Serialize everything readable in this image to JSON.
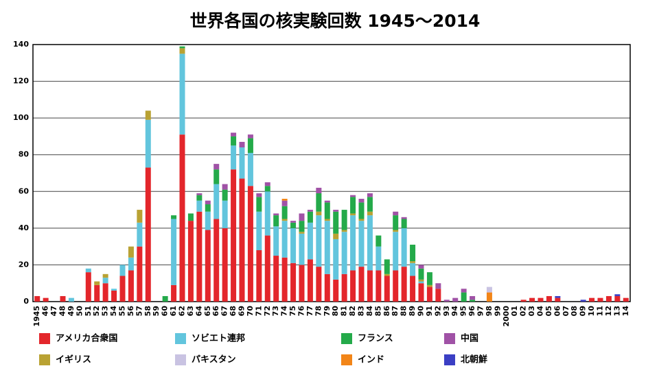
{
  "chart_data": {
    "type": "stacked_bar",
    "title": "世界各国の核実験回数 1945～2014",
    "categories": [
      "1945",
      "46",
      "47",
      "48",
      "49",
      "50",
      "51",
      "52",
      "53",
      "54",
      "55",
      "56",
      "57",
      "58",
      "59",
      "60",
      "61",
      "62",
      "63",
      "64",
      "65",
      "66",
      "67",
      "68",
      "69",
      "70",
      "71",
      "72",
      "73",
      "74",
      "75",
      "76",
      "77",
      "78",
      "79",
      "80",
      "81",
      "82",
      "83",
      "84",
      "85",
      "86",
      "87",
      "88",
      "89",
      "90",
      "91",
      "92",
      "93",
      "94",
      "95",
      "96",
      "97",
      "98",
      "99",
      "2000",
      "01",
      "02",
      "03",
      "04",
      "05",
      "06",
      "07",
      "08",
      "09",
      "10",
      "11",
      "12",
      "13",
      "14"
    ],
    "series": [
      {
        "name": "アメリカ合衆国",
        "color": "#e3262b",
        "values": [
          3,
          2,
          0,
          3,
          0,
          0,
          16,
          9,
          10,
          6,
          14,
          17,
          30,
          73,
          0,
          0,
          9,
          91,
          44,
          49,
          39,
          45,
          40,
          72,
          67,
          63,
          28,
          36,
          25,
          24,
          21,
          20,
          23,
          19,
          15,
          12,
          15,
          17,
          19,
          17,
          17,
          14,
          17,
          19,
          14,
          10,
          8,
          7,
          0,
          0,
          0,
          0,
          0,
          0,
          0,
          0,
          0,
          1,
          2,
          2,
          3,
          2,
          0,
          0,
          0,
          2,
          2,
          3,
          3,
          2
        ]
      },
      {
        "name": "ソビエト連邦",
        "color": "#62c5dd",
        "values": [
          0,
          0,
          0,
          0,
          2,
          0,
          2,
          0,
          3,
          1,
          6,
          7,
          13,
          26,
          0,
          0,
          36,
          44,
          0,
          6,
          10,
          19,
          15,
          13,
          17,
          18,
          21,
          24,
          16,
          20,
          19,
          17,
          20,
          28,
          29,
          22,
          23,
          30,
          25,
          30,
          13,
          0,
          21,
          21,
          7,
          1,
          0,
          0,
          0,
          0,
          0,
          0,
          0,
          0,
          0,
          0,
          0,
          0,
          0,
          0,
          0,
          0,
          0,
          0,
          0,
          0,
          0,
          0,
          0,
          0
        ]
      },
      {
        "name": "イギリス",
        "color": "#b9a233",
        "values": [
          0,
          0,
          0,
          0,
          0,
          0,
          0,
          2,
          2,
          0,
          0,
          6,
          7,
          5,
          0,
          0,
          0,
          3,
          0,
          0,
          0,
          0,
          0,
          0,
          0,
          0,
          0,
          0,
          0,
          1,
          0,
          1,
          0,
          2,
          1,
          3,
          1,
          1,
          1,
          2,
          0,
          1,
          1,
          0,
          1,
          1,
          1,
          0,
          0,
          0,
          0,
          0,
          0,
          0,
          0,
          0,
          0,
          0,
          0,
          0,
          0,
          0,
          0,
          0,
          0,
          0,
          0,
          0,
          0,
          0
        ]
      },
      {
        "name": "フランス",
        "color": "#24aa4a",
        "values": [
          0,
          0,
          0,
          0,
          0,
          0,
          0,
          0,
          0,
          0,
          0,
          0,
          0,
          0,
          0,
          3,
          2,
          1,
          4,
          3,
          4,
          8,
          6,
          5,
          0,
          8,
          8,
          3,
          6,
          7,
          3,
          6,
          6,
          10,
          9,
          12,
          11,
          9,
          9,
          8,
          6,
          8,
          8,
          5,
          9,
          6,
          7,
          0,
          0,
          0,
          5,
          1,
          0,
          0,
          0,
          0,
          0,
          0,
          0,
          0,
          0,
          0,
          0,
          0,
          0,
          0,
          0,
          0,
          0,
          0
        ]
      },
      {
        "name": "中国",
        "color": "#a052a6",
        "values": [
          0,
          0,
          0,
          0,
          0,
          0,
          0,
          0,
          0,
          0,
          0,
          0,
          0,
          0,
          0,
          0,
          0,
          0,
          0,
          1,
          2,
          3,
          3,
          2,
          3,
          2,
          2,
          2,
          1,
          3,
          1,
          4,
          1,
          3,
          1,
          1,
          0,
          1,
          2,
          2,
          0,
          0,
          2,
          1,
          0,
          2,
          0,
          3,
          1,
          2,
          2,
          2,
          0,
          0,
          0,
          0,
          0,
          0,
          0,
          0,
          0,
          0,
          0,
          0,
          0,
          0,
          0,
          0,
          0,
          0
        ]
      },
      {
        "name": "インド",
        "color": "#f28518",
        "values": [
          0,
          0,
          0,
          0,
          0,
          0,
          0,
          0,
          0,
          0,
          0,
          0,
          0,
          0,
          0,
          0,
          0,
          0,
          0,
          0,
          0,
          0,
          0,
          0,
          0,
          0,
          0,
          0,
          0,
          1,
          0,
          0,
          0,
          0,
          0,
          0,
          0,
          0,
          0,
          0,
          0,
          0,
          0,
          0,
          0,
          0,
          0,
          0,
          0,
          0,
          0,
          0,
          0,
          5,
          0,
          0,
          0,
          0,
          0,
          0,
          0,
          0,
          0,
          0,
          0,
          0,
          0,
          0,
          0,
          0
        ]
      },
      {
        "name": "パキスタン",
        "color": "#c9c3e2",
        "values": [
          0,
          0,
          0,
          0,
          0,
          0,
          0,
          0,
          0,
          0,
          0,
          0,
          0,
          0,
          0,
          0,
          0,
          0,
          0,
          0,
          0,
          0,
          0,
          0,
          0,
          0,
          0,
          0,
          0,
          0,
          0,
          0,
          0,
          0,
          0,
          0,
          0,
          0,
          0,
          0,
          0,
          0,
          0,
          0,
          0,
          0,
          0,
          0,
          0,
          0,
          0,
          0,
          0,
          3,
          0,
          0,
          0,
          0,
          0,
          0,
          0,
          0,
          0,
          0,
          0,
          0,
          0,
          0,
          0,
          0
        ]
      },
      {
        "name": "北朝鮮",
        "color": "#3b3fc4",
        "values": [
          0,
          0,
          0,
          0,
          0,
          0,
          0,
          0,
          0,
          0,
          0,
          0,
          0,
          0,
          0,
          0,
          0,
          0,
          0,
          0,
          0,
          0,
          0,
          0,
          0,
          0,
          0,
          0,
          0,
          0,
          0,
          0,
          0,
          0,
          0,
          0,
          0,
          0,
          0,
          0,
          0,
          0,
          0,
          0,
          0,
          0,
          0,
          0,
          0,
          0,
          0,
          0,
          0,
          0,
          0,
          0,
          0,
          0,
          0,
          0,
          0,
          1,
          0,
          0,
          1,
          0,
          0,
          0,
          1,
          0
        ]
      }
    ],
    "ylim": [
      0,
      140
    ],
    "yticks": [
      0,
      20,
      40,
      60,
      80,
      100,
      120,
      140
    ],
    "grid": true
  }
}
